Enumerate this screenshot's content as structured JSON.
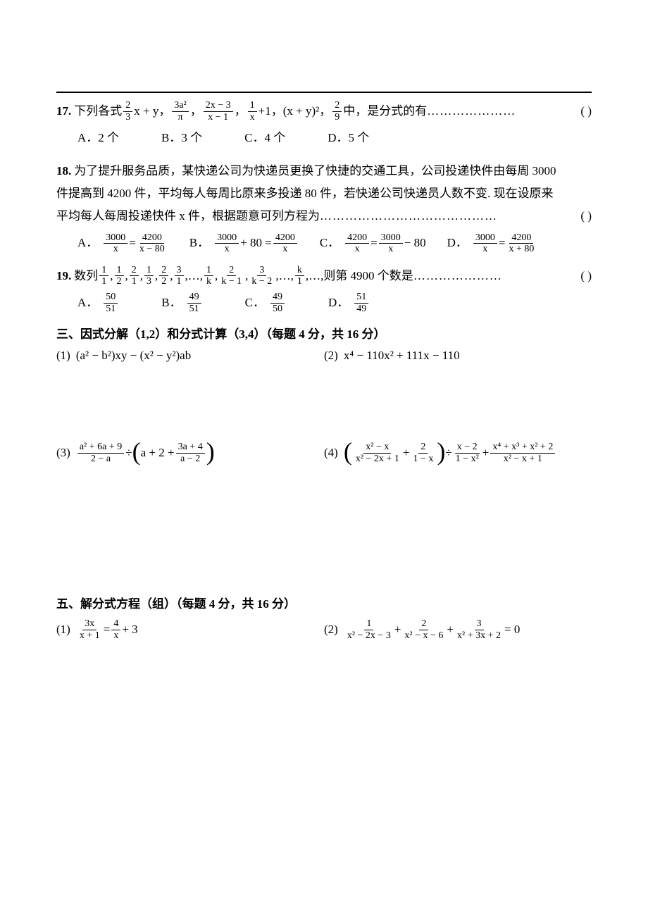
{
  "colors": {
    "text": "#000000",
    "bg": "#ffffff"
  },
  "q17": {
    "num": "17.",
    "lead": "下列各式",
    "f1_num": "2",
    "f1_den": "3",
    "t1": "x + y，",
    "f2_num": "3a²",
    "f2_den": "π",
    "comma1": "，",
    "f3_num": "2x − 3",
    "f3_den": "x − 1",
    "comma2": "，",
    "f4_num": "1",
    "f4_den": "x",
    "t2": "+1，(x + y)²，",
    "f5_num": "2",
    "f5_den": "9",
    "t3": "中，是分式的有",
    "dots": "…………………",
    "paren": "(        )",
    "A": "A．2 个",
    "B": "B．3 个",
    "C": "C．4 个",
    "D": "D．5 个"
  },
  "q18": {
    "num": "18.",
    "line1a": "为了提升服务品质，某快递公司为快递员更换了快捷的交通工具，公司投递快件由每周 3000",
    "line2": "件提高到 4200 件，平均每人每周比原来多投递 80 件，若快递公司快递员人数不变. 现在设原来",
    "line3a": "平均每人每周投递快件 x 件，根据题意可列方程为",
    "dots": "……………………………………",
    "paren": "(        )",
    "A_label": "A．",
    "A_l_num": "3000",
    "A_l_den": "x",
    "A_mid": "=",
    "A_r_num": "4200",
    "A_r_den": "x − 80",
    "B_label": "B．",
    "B_l_num": "3000",
    "B_l_den": "x",
    "B_mid": "+ 80 =",
    "B_r_num": "4200",
    "B_r_den": "x",
    "C_label": "C．",
    "C_l_num": "4200",
    "C_l_den": "x",
    "C_mid": "=",
    "C_r_num": "3000",
    "C_r_den": "x",
    "C_tail": "− 80",
    "D_label": "D．",
    "D_l_num": "3000",
    "D_l_den": "x",
    "D_mid": "=",
    "D_r_num": "4200",
    "D_r_den": "x + 80"
  },
  "q19": {
    "num": "19.",
    "lead": "数列",
    "seq1_num": "1",
    "seq1_den": "1",
    "seq2_num": "1",
    "seq2_den": "2",
    "seq3_num": "2",
    "seq3_den": "1",
    "seq4_num": "1",
    "seq4_den": "3",
    "seq5_num": "2",
    "seq5_den": "2",
    "seq6_num": "3",
    "seq6_den": "1",
    "ell": ",…,",
    "seqk1_num": "1",
    "seqk1_den": "k",
    "seqk2_num": "2",
    "seqk2_den": "k − 1",
    "seqk3_num": "3",
    "seqk3_den": "k − 2",
    "seqkk_num": "k",
    "seqkk_den": "1",
    "tail": ",…,则第 4900 个数是",
    "dots": "…………………",
    "paren": "(        )",
    "A_label": "A．",
    "A_num": "50",
    "A_den": "51",
    "B_label": "B．",
    "B_num": "49",
    "B_den": "51",
    "C_label": "C．",
    "C_num": "49",
    "C_den": "50",
    "D_label": "D．",
    "D_num": "51",
    "D_den": "49"
  },
  "section3": "三、因式分解（1,2）和分式计算（3,4）（每题 4 分，共 16 分）",
  "p3_1": {
    "num": "(1)",
    "expr": "(a² − b²)xy − (x² − y²)ab"
  },
  "p3_2": {
    "num": "(2)",
    "expr": "x⁴ − 110x² + 111x − 110"
  },
  "p3_3": {
    "num": "(3)",
    "f1_num": "a² + 6a + 9",
    "f1_den": "2 − a",
    "div": "÷",
    "inner_a": "a + 2 +",
    "f2_num": "3a + 4",
    "f2_den": "a − 2"
  },
  "p3_4": {
    "num": "(4)",
    "f1_num": "x² − x",
    "f1_den": "x² − 2x + 1",
    "plus1": "+",
    "f2_num": "2",
    "f2_den": "1 − x",
    "div": "÷",
    "f3_num": "x − 2",
    "f3_den": "1 − x²",
    "plus2": "+",
    "f4_num": "x⁴ + x³ + x² + 2",
    "f4_den": "x² − x + 1"
  },
  "section5": "五、解分式方程（组）（每题 4 分，共 16 分）",
  "p5_1": {
    "num": "(1)",
    "f1_num": "3x",
    "f1_den": "x + 1",
    "eq": "=",
    "f2_num": "4",
    "f2_den": "x",
    "tail": "+ 3"
  },
  "p5_2": {
    "num": "(2)",
    "f1_num": "1",
    "f1_den": "x² − 2x − 3",
    "plus1": "+",
    "f2_num": "2",
    "f2_den": "x² − x − 6",
    "plus2": "+",
    "f3_num": "3",
    "f3_den": "x² + 3x + 2",
    "eq": "= 0"
  }
}
